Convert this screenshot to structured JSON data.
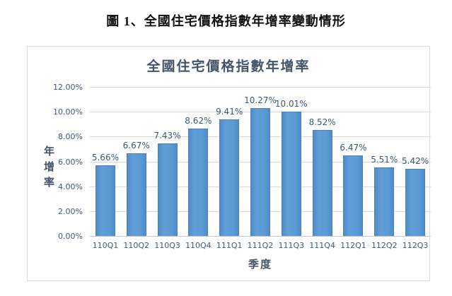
{
  "page": {
    "title": "圖 1、全國住宅價格指數年增率變動情形"
  },
  "chart": {
    "title": "全國住宅價格指數年增率",
    "y_axis_title": "年增率",
    "x_axis_title": "季度"
  },
  "chart_data": {
    "type": "bar",
    "title": "全國住宅價格指數年增率",
    "xlabel": "季度",
    "ylabel": "年增率",
    "categories": [
      "110Q1",
      "110Q2",
      "110Q3",
      "110Q4",
      "111Q1",
      "111Q2",
      "111Q3",
      "111Q4",
      "112Q1",
      "112Q2",
      "112Q3"
    ],
    "values": [
      5.66,
      6.67,
      7.43,
      8.62,
      9.41,
      10.27,
      10.01,
      8.52,
      6.47,
      5.51,
      5.42
    ],
    "data_labels": [
      "5.66%",
      "6.67%",
      "7.43%",
      "8.62%",
      "9.41%",
      "10.27%",
      "10.01%",
      "8.52%",
      "6.47%",
      "5.51%",
      "5.42%"
    ],
    "ylim": [
      0,
      12
    ],
    "y_tick_step": 2,
    "y_tick_labels": [
      "0.00%",
      "2.00%",
      "4.00%",
      "6.00%",
      "8.00%",
      "10.00%",
      "12.00%"
    ],
    "grid": true,
    "legend_position": "none",
    "colors": {
      "bar_fill": "#5b9bd5",
      "bar_border": "#4a80be",
      "gridline": "#d9d9d9",
      "title_text": "#44546a",
      "tick_text": "#3f5878",
      "page_title_text": "#111111",
      "chart_border": "#d9dde3"
    }
  }
}
